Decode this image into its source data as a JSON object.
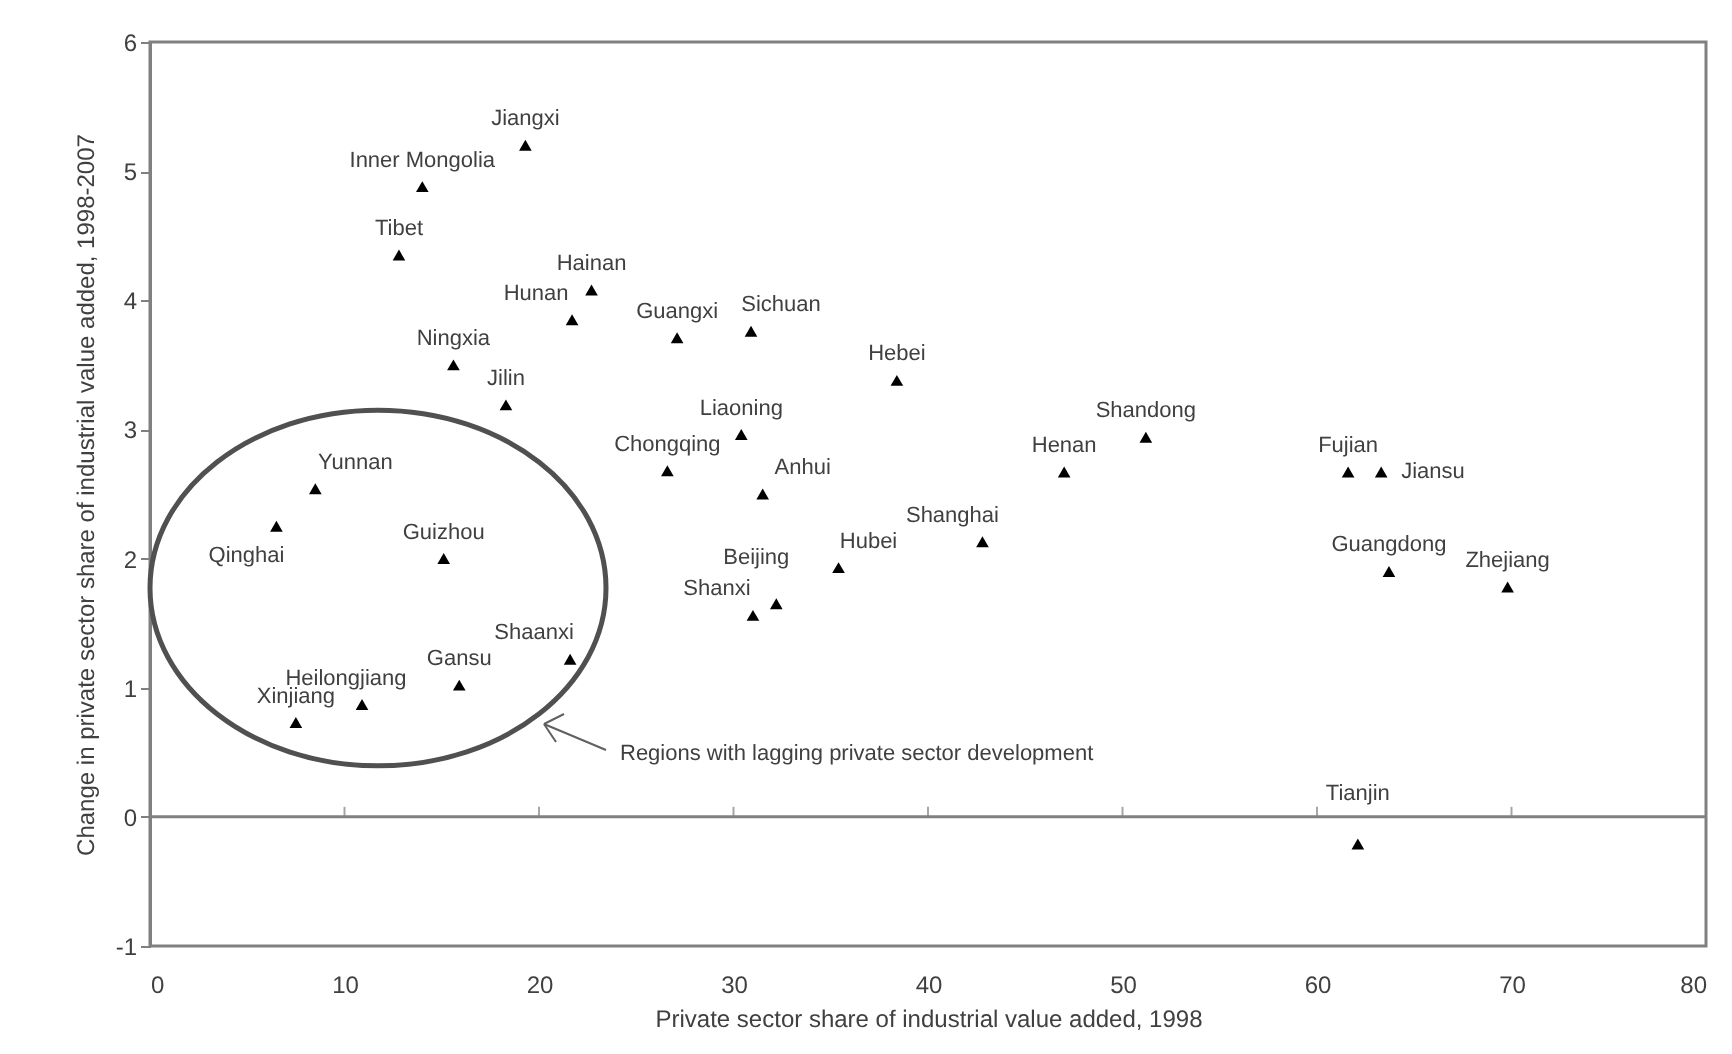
{
  "chart_data": {
    "type": "scatter",
    "xlabel": "Private sector share of industrial value added, 1998",
    "ylabel": "Change in private sector share of industrial value added, 1998-2007",
    "x": [
      19.3,
      14.0,
      12.8,
      22.7,
      21.7,
      27.1,
      30.9,
      15.6,
      18.3,
      38.4,
      30.4,
      26.6,
      31.5,
      8.5,
      6.5,
      35.4,
      32.2,
      31.0,
      42.8,
      47.0,
      51.2,
      61.6,
      63.3,
      63.7,
      69.8,
      15.1,
      21.6,
      15.9,
      10.9,
      7.5,
      62.1
    ],
    "series": [
      {
        "color": "#000000",
        "values": [
          5.2,
          4.88,
          4.35,
          4.08,
          3.85,
          3.71,
          3.76,
          3.5,
          3.19,
          3.38,
          2.96,
          2.68,
          2.5,
          2.54,
          2.25,
          1.93,
          1.65,
          1.56,
          2.13,
          2.67,
          2.94,
          2.67,
          2.67,
          1.9,
          1.78,
          2.0,
          1.22,
          1.02,
          0.87,
          0.73,
          -0.21
        ]
      }
    ],
    "marker": "triangle",
    "xlim": [
      0,
      80
    ],
    "xticks": [
      0,
      10,
      20,
      30,
      40,
      50,
      60,
      70,
      80
    ],
    "ylim": [
      -1,
      6
    ],
    "yticks": [
      -1,
      0,
      1,
      2,
      3,
      4,
      5,
      6
    ],
    "grid": false,
    "ref_lines": [
      {
        "axis": "y",
        "value": 0,
        "color": "#808080"
      }
    ],
    "annotations": [
      {
        "text": "Jiangxi",
        "x": 19.3,
        "y": 5.2
      },
      {
        "text": "Inner Mongolia",
        "x": 14.0,
        "y": 4.88
      },
      {
        "text": "Tibet",
        "x": 12.8,
        "y": 4.35
      },
      {
        "text": "Hainan",
        "x": 22.7,
        "y": 4.08
      },
      {
        "text": "Hunan",
        "x": 21.7,
        "y": 3.85
      },
      {
        "text": "Guangxi",
        "x": 27.1,
        "y": 3.71
      },
      {
        "text": "Sichuan",
        "x": 30.9,
        "y": 3.76
      },
      {
        "text": "Ningxia",
        "x": 15.6,
        "y": 3.5
      },
      {
        "text": "Jilin",
        "x": 18.3,
        "y": 3.19
      },
      {
        "text": "Hebei",
        "x": 38.4,
        "y": 3.38
      },
      {
        "text": "Liaoning",
        "x": 30.4,
        "y": 2.96
      },
      {
        "text": "Chongqing",
        "x": 26.6,
        "y": 2.68
      },
      {
        "text": "Anhui",
        "x": 31.5,
        "y": 2.5
      },
      {
        "text": "Yunnan",
        "x": 8.5,
        "y": 2.54
      },
      {
        "text": "Qinghai",
        "x": 6.5,
        "y": 2.25
      },
      {
        "text": "Hubei",
        "x": 35.4,
        "y": 1.93
      },
      {
        "text": "Beijing",
        "x": 32.2,
        "y": 1.65
      },
      {
        "text": "Shanxi",
        "x": 31.0,
        "y": 1.56
      },
      {
        "text": "Shanghai",
        "x": 42.8,
        "y": 2.13
      },
      {
        "text": "Henan",
        "x": 47.0,
        "y": 2.67
      },
      {
        "text": "Shandong",
        "x": 51.2,
        "y": 2.94
      },
      {
        "text": "Fujian",
        "x": 61.6,
        "y": 2.67
      },
      {
        "text": "Jiansu",
        "x": 63.3,
        "y": 2.67
      },
      {
        "text": "Guangdong",
        "x": 63.7,
        "y": 1.9
      },
      {
        "text": "Zhejiang",
        "x": 69.8,
        "y": 1.78
      },
      {
        "text": "Guizhou",
        "x": 15.1,
        "y": 2.0
      },
      {
        "text": "Shaanxi",
        "x": 21.6,
        "y": 1.22
      },
      {
        "text": "Gansu",
        "x": 15.9,
        "y": 1.02
      },
      {
        "text": "Heilongjiang",
        "x": 10.9,
        "y": 0.87
      },
      {
        "text": "Xinjiang",
        "x": 7.5,
        "y": 0.73
      },
      {
        "text": "Tianjin",
        "x": 62.1,
        "y": -0.21
      },
      "Regions with lagging private sector development"
    ]
  }
}
